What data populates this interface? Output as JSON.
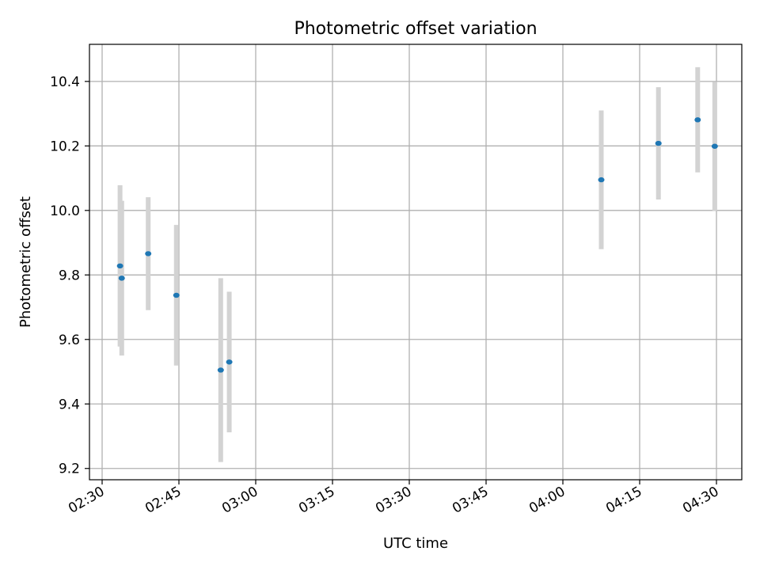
{
  "chart_data": {
    "type": "scatter",
    "title": "Photometric offset variation",
    "xlabel": "UTC time",
    "ylabel": "Photometric offset",
    "x_unit": "minutes",
    "x_ticks": [
      "02:30",
      "02:45",
      "03:00",
      "03:15",
      "03:30",
      "03:45",
      "04:00",
      "04:15",
      "04:30"
    ],
    "y_ticks": [
      "9.2",
      "9.4",
      "9.6",
      "9.8",
      "10.0",
      "10.2",
      "10.4"
    ],
    "ylim": [
      9.165,
      10.515
    ],
    "grid": true,
    "marker_color": "#1f77b4",
    "errorbar_color": "#d3d3d3",
    "series": [
      {
        "points": [
          {
            "x": "02:33:30",
            "y": 9.828,
            "err": 0.25
          },
          {
            "x": "02:33:50",
            "y": 9.79,
            "err": 0.24
          },
          {
            "x": "02:39:00",
            "y": 9.866,
            "err": 0.175
          },
          {
            "x": "02:44:30",
            "y": 9.737,
            "err": 0.218
          },
          {
            "x": "02:53:10",
            "y": 9.505,
            "err": 0.285
          },
          {
            "x": "02:54:50",
            "y": 9.53,
            "err": 0.218
          },
          {
            "x": "04:07:30",
            "y": 10.095,
            "err": 0.215
          },
          {
            "x": "04:18:40",
            "y": 10.208,
            "err": 0.174
          },
          {
            "x": "04:26:20",
            "y": 10.281,
            "err": 0.163
          },
          {
            "x": "04:29:40",
            "y": 10.199,
            "err": 0.2
          }
        ]
      }
    ]
  }
}
